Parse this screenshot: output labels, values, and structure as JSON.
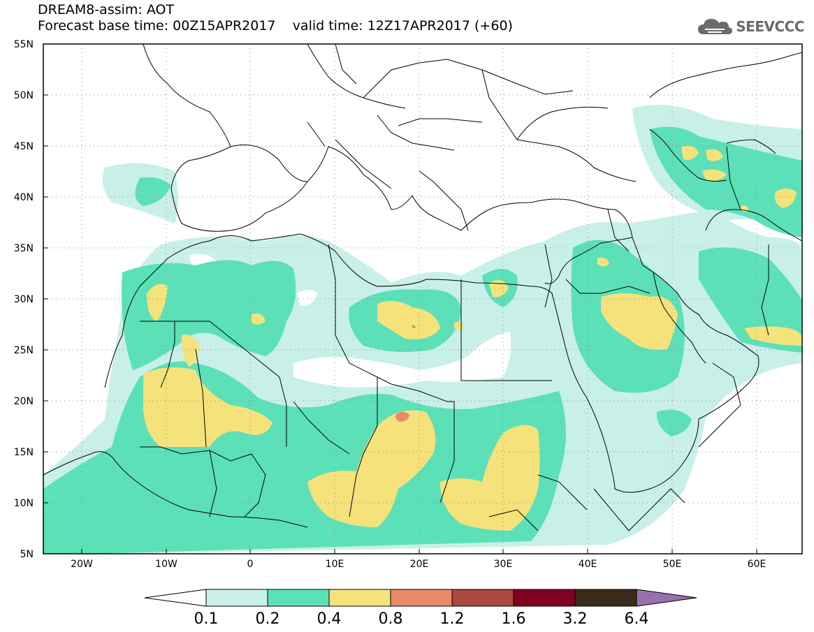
{
  "header": {
    "title": "DREAM8-assim: AOT",
    "base_time": "Forecast base time: 00Z15APR2017",
    "valid_time": "valid time: 12Z17APR2017 (+60)"
  },
  "logo": {
    "text": "SEEVCCC",
    "icon": "cloud-icon"
  },
  "map": {
    "lon_range": [
      -25,
      65
    ],
    "lat_range": [
      5,
      55
    ],
    "lon_ticks": [
      "20W",
      "10W",
      "0",
      "10E",
      "20E",
      "30E",
      "40E",
      "50E",
      "60E"
    ],
    "lat_ticks": [
      "55N",
      "50N",
      "45N",
      "40N",
      "35N",
      "30N",
      "25N",
      "20N",
      "15N",
      "10N",
      "5N"
    ],
    "grid": "dotted"
  },
  "colorbar": {
    "labels": [
      "0.1",
      "0.2",
      "0.4",
      "0.8",
      "1.2",
      "1.6",
      "3.2",
      "6.4"
    ],
    "colors": [
      "#ffffff",
      "#c8f0e8",
      "#5ce0b8",
      "#f5e27a",
      "#e8896a",
      "#a8483e",
      "#800020",
      "#3b2a1a",
      "#9a70ac"
    ]
  },
  "legend": {
    "colors": {
      "c1": "#c8f0e8",
      "c2": "#5ce0b8",
      "c3": "#f5e27a",
      "c4": "#e8896a",
      "land": "#ffffff",
      "border": "#000000"
    }
  }
}
